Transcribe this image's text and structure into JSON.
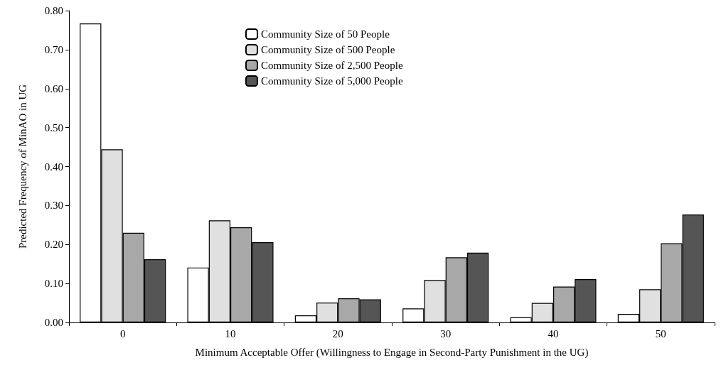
{
  "chart_data": {
    "type": "bar",
    "xlabel": "Minimum Acceptable Offer (Willingness to Engage in Second-Party Punishment in the UG)",
    "ylabel": "Predicted Frequency of MinAO in UG",
    "categories": [
      "0",
      "10",
      "20",
      "30",
      "40",
      "50"
    ],
    "series": [
      {
        "name": "Community Size of 50 People",
        "color": "#ffffff",
        "values": [
          0.767,
          0.141,
          0.018,
          0.036,
          0.013,
          0.022
        ]
      },
      {
        "name": "Community Size of 500 People",
        "color": "#e0e0e0",
        "values": [
          0.444,
          0.262,
          0.051,
          0.109,
          0.05,
          0.085
        ]
      },
      {
        "name": "Community Size of 2,500 People",
        "color": "#a8a8a8",
        "values": [
          0.23,
          0.244,
          0.062,
          0.167,
          0.092,
          0.203
        ]
      },
      {
        "name": "Community Size of 5,000 People",
        "color": "#555555",
        "values": [
          0.162,
          0.206,
          0.059,
          0.179,
          0.111,
          0.277
        ]
      }
    ],
    "ylim": [
      0,
      0.8
    ],
    "yticks": [
      {
        "value": 0,
        "label": "0.00"
      },
      {
        "value": 0.1,
        "label": "0.10"
      },
      {
        "value": 0.2,
        "label": "0.20"
      },
      {
        "value": 0.3,
        "label": "0.30"
      },
      {
        "value": 0.4,
        "label": "0.40"
      },
      {
        "value": 0.5,
        "label": "0.50"
      },
      {
        "value": 0.6,
        "label": "0.60"
      },
      {
        "value": 0.7,
        "label": "0.70"
      },
      {
        "value": 0.8,
        "label": "0.80"
      }
    ],
    "grid": false,
    "legend": "top"
  }
}
